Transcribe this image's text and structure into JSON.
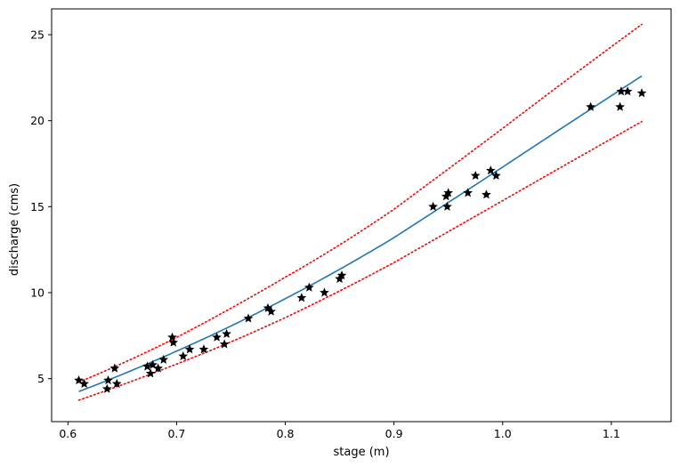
{
  "chart_data": {
    "type": "scatter",
    "title": "",
    "xlabel": "stage (m)",
    "ylabel": "discharge (cms)",
    "xlim": [
      0.585,
      1.155
    ],
    "ylim": [
      2.5,
      26.5
    ],
    "xticks": [
      0.6,
      0.7,
      0.8,
      0.9,
      1.0,
      1.1
    ],
    "xtick_labels": [
      "0.6",
      "0.7",
      "0.8",
      "0.9",
      "1.0",
      "1.1"
    ],
    "yticks": [
      5,
      10,
      15,
      20,
      25
    ],
    "ytick_labels": [
      "5",
      "10",
      "15",
      "20",
      "25"
    ],
    "grid": false,
    "legend": "none",
    "series": [
      {
        "kind": "scatter",
        "marker": "star",
        "color": "#000000",
        "points": [
          [
            0.61,
            4.9
          ],
          [
            0.615,
            4.7
          ],
          [
            0.636,
            4.4
          ],
          [
            0.637,
            4.9
          ],
          [
            0.643,
            5.6
          ],
          [
            0.645,
            4.7
          ],
          [
            0.673,
            5.7
          ],
          [
            0.676,
            5.3
          ],
          [
            0.678,
            5.8
          ],
          [
            0.683,
            5.6
          ],
          [
            0.688,
            6.1
          ],
          [
            0.696,
            7.4
          ],
          [
            0.697,
            7.1
          ],
          [
            0.706,
            6.3
          ],
          [
            0.712,
            6.7
          ],
          [
            0.725,
            6.7
          ],
          [
            0.737,
            7.4
          ],
          [
            0.744,
            7.0
          ],
          [
            0.746,
            7.6
          ],
          [
            0.766,
            8.5
          ],
          [
            0.784,
            9.1
          ],
          [
            0.787,
            8.9
          ],
          [
            0.815,
            9.7
          ],
          [
            0.822,
            10.3
          ],
          [
            0.836,
            10.0
          ],
          [
            0.85,
            10.8
          ],
          [
            0.852,
            11.0
          ],
          [
            0.936,
            15.0
          ],
          [
            0.948,
            15.6
          ],
          [
            0.949,
            15.0
          ],
          [
            0.95,
            15.8
          ],
          [
            0.968,
            15.8
          ],
          [
            0.975,
            16.8
          ],
          [
            0.985,
            15.7
          ],
          [
            0.989,
            17.1
          ],
          [
            0.994,
            16.8
          ],
          [
            1.081,
            20.8
          ],
          [
            1.108,
            20.8
          ],
          [
            1.109,
            21.7
          ],
          [
            1.115,
            21.7
          ],
          [
            1.128,
            21.6
          ]
        ]
      },
      {
        "kind": "line",
        "style": "solid",
        "color": "#1f77b4",
        "x": [
          0.61,
          0.7,
          0.8,
          0.9,
          1.0,
          1.1,
          1.128
        ],
        "y": [
          4.25,
          6.6,
          9.65,
          13.2,
          17.3,
          21.45,
          22.6
        ]
      },
      {
        "kind": "line",
        "style": "dotted",
        "color": "#ff0000",
        "x": [
          0.61,
          0.7,
          0.8,
          0.9,
          1.0,
          1.1,
          1.128
        ],
        "y": [
          4.8,
          7.4,
          10.9,
          14.85,
          19.55,
          24.3,
          25.6
        ]
      },
      {
        "kind": "line",
        "style": "dotted",
        "color": "#ff0000",
        "x": [
          0.61,
          0.7,
          0.8,
          0.9,
          1.0,
          1.1,
          1.128
        ],
        "y": [
          3.75,
          5.85,
          8.55,
          11.75,
          15.35,
          18.95,
          19.95
        ]
      }
    ]
  }
}
